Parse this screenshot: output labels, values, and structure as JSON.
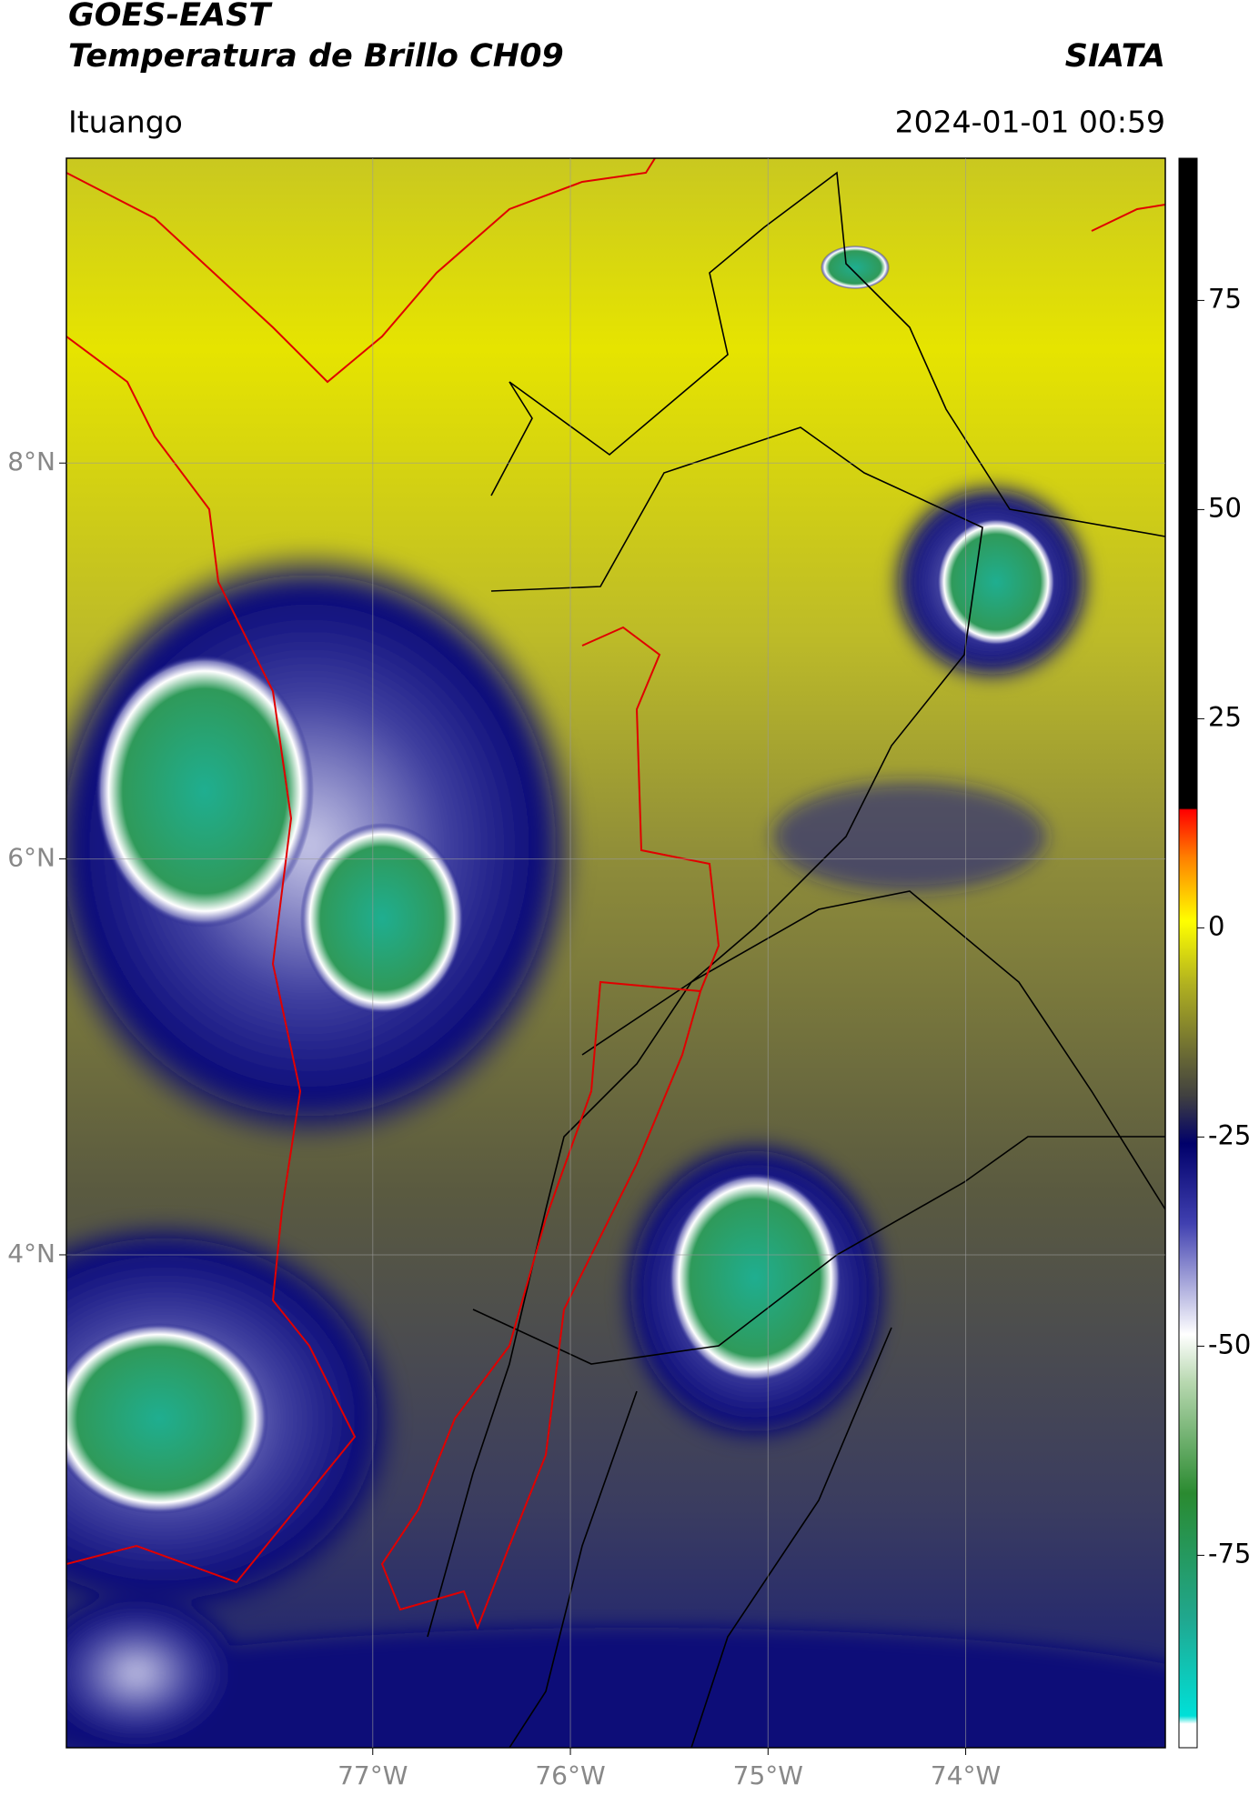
{
  "header": {
    "title": "GOES-EAST",
    "subtitle": "Temperatura de Brillo CH09",
    "brand": "SIATA",
    "location": "Ituango",
    "datetime": "2024-01-01 00:59"
  },
  "chart_data": {
    "type": "map",
    "xlim": [
      -78.55,
      -72.99
    ],
    "ylim": [
      1.51,
      9.54
    ],
    "xticks": [
      {
        "value": -77,
        "label": "77°W"
      },
      {
        "value": -76,
        "label": "76°W"
      },
      {
        "value": -75,
        "label": "75°W"
      },
      {
        "value": -74,
        "label": "74°W"
      }
    ],
    "yticks": [
      {
        "value": 4,
        "label": "4°N"
      },
      {
        "value": 6,
        "label": "6°N"
      },
      {
        "value": 8,
        "label": "8°N"
      }
    ],
    "grid": true,
    "colorbar": {
      "lim": [
        -98,
        92
      ],
      "ticks": [
        -75,
        -50,
        -25,
        0,
        25,
        50,
        75
      ]
    }
  }
}
